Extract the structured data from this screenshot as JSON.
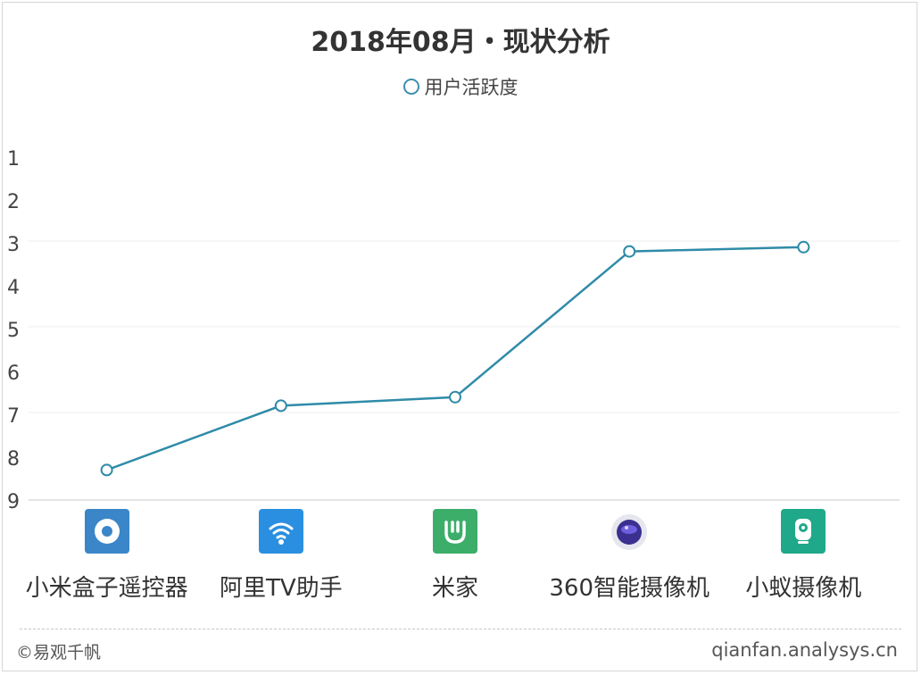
{
  "chart_data": {
    "type": "line",
    "title": "2018年08月・现状分析",
    "categories": [
      "小米盒子遥控器",
      "阿里TV助手",
      "米家",
      "360智能摄像机",
      "小蚁摄像机"
    ],
    "series": [
      {
        "name": "用户活跃度",
        "values": [
          8.3,
          6.8,
          6.6,
          3.2,
          3.1
        ],
        "color": "#2f8ba8"
      }
    ],
    "yticks": [
      "1",
      "2",
      "3",
      "4",
      "5",
      "6",
      "7",
      "8",
      "9"
    ],
    "ylim": [
      1,
      9
    ],
    "y_inverted": true,
    "legend_position": "top-center",
    "icons": [
      "remote-icon",
      "wifi-tv-icon",
      "mijia-icon",
      "camera-360-icon",
      "yi-camera-icon"
    ],
    "icon_colors": [
      "#3a86c8",
      "#2a8fe0",
      "#3cae6a",
      "#5b4ec9",
      "#1fa88a"
    ]
  },
  "footer": {
    "left": "©易观千帆",
    "right": "qianfan.analysys.cn"
  }
}
